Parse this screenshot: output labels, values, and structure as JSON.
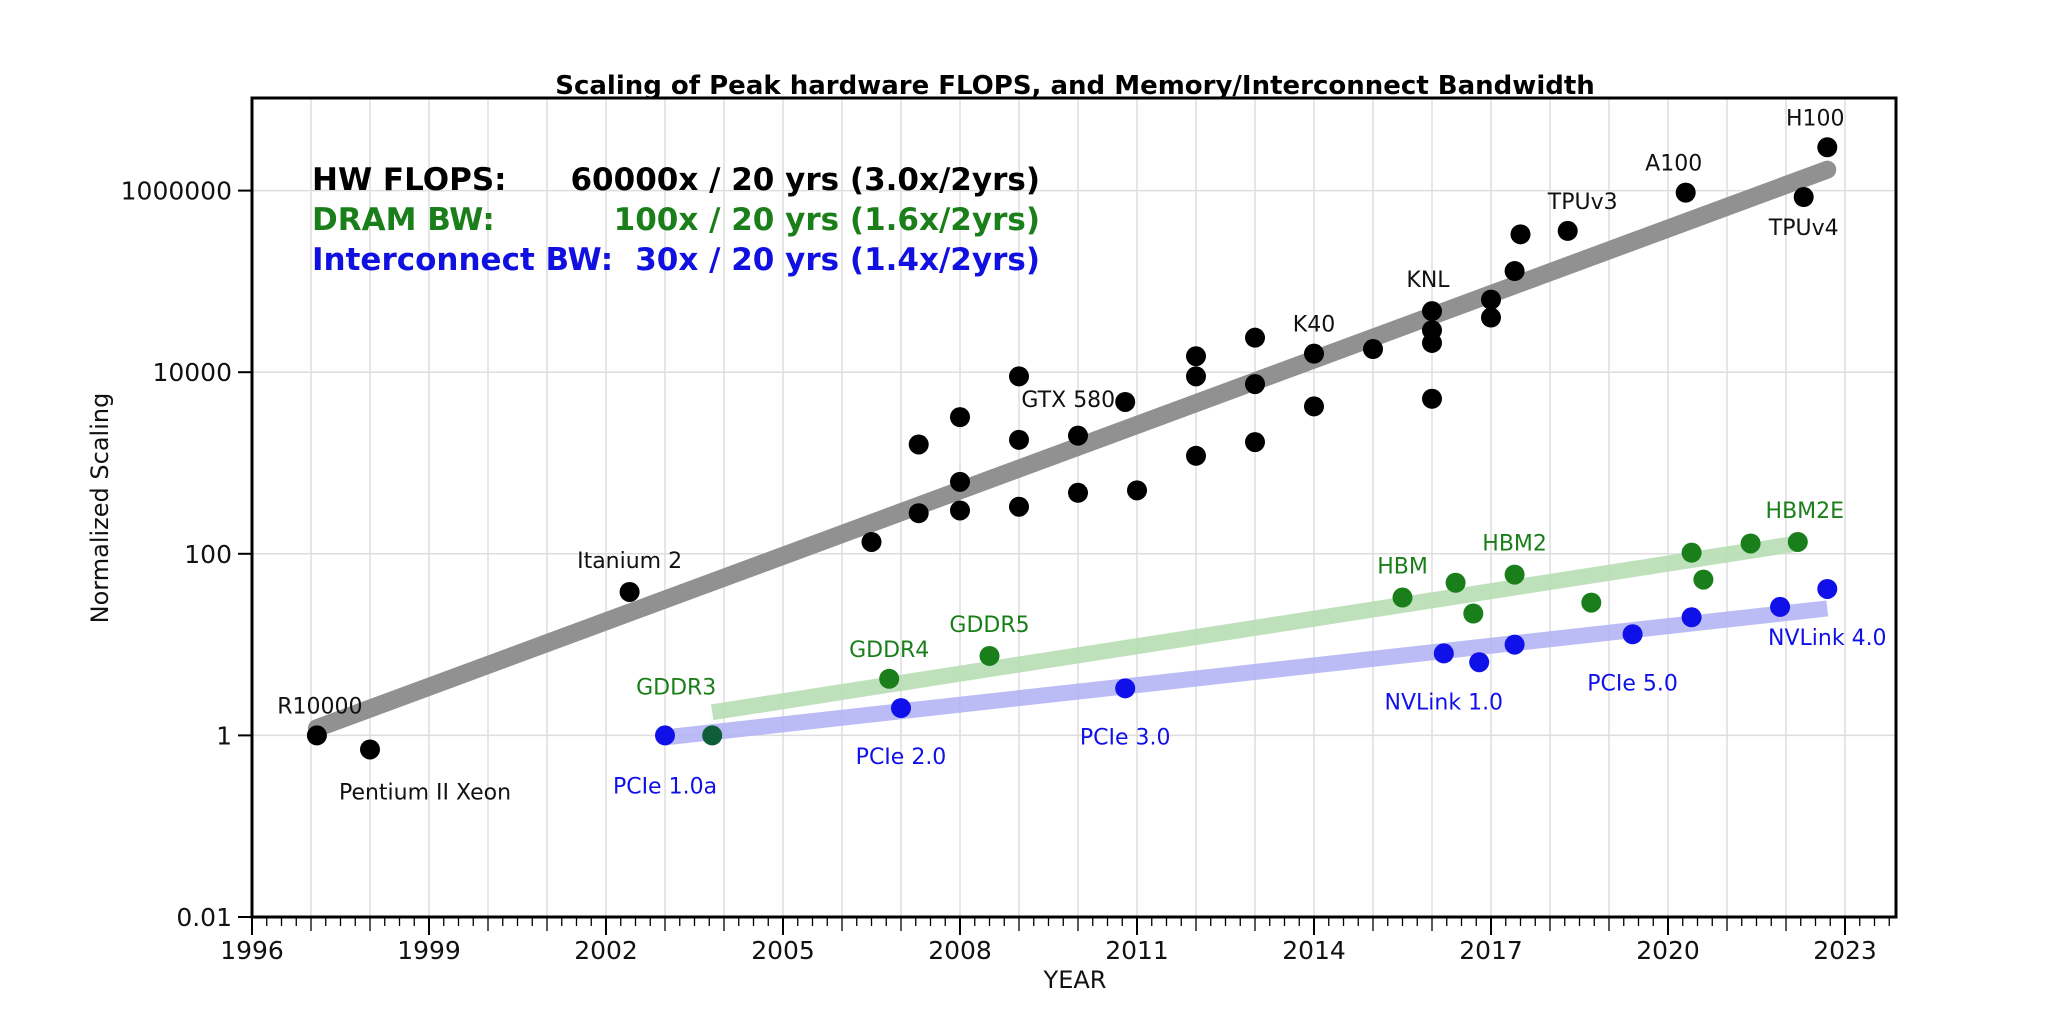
{
  "chart_data": {
    "type": "scatter",
    "title": "Scaling of Peak hardware FLOPS, and Memory/Interconnect Bandwidth",
    "xlabel": "YEAR",
    "ylabel": "Normalized Scaling",
    "xlim": [
      1996,
      2024
    ],
    "ylim": [
      0.01,
      10000000
    ],
    "yscale": "log",
    "grid": true,
    "x_ticks": [
      1996,
      1999,
      2002,
      2005,
      2008,
      2011,
      2014,
      2017,
      2020,
      2023
    ],
    "y_ticks": [
      {
        "value": 0.01,
        "label": "0.01"
      },
      {
        "value": 1,
        "label": "1"
      },
      {
        "value": 100,
        "label": "100"
      },
      {
        "value": 10000,
        "label": "10000"
      },
      {
        "value": 1000000,
        "label": "1000000"
      }
    ],
    "annotations": [
      {
        "label": "HW FLOPS:",
        "value": "60000x / 20 yrs (3.0x/2yrs)",
        "color": "#000000"
      },
      {
        "label": "DRAM BW:",
        "value": "100x / 20 yrs (1.6x/2yrs)",
        "color": "#1a7f1a"
      },
      {
        "label": "Interconnect BW:",
        "value": "30x / 20 yrs (1.4x/2yrs)",
        "color": "#1010e0"
      }
    ],
    "series": [
      {
        "name": "HW FLOPS",
        "color": "#000000",
        "trend": {
          "color": "#8c8c8c",
          "from": [
            1997.1,
            1.2
          ],
          "to": [
            2022.7,
            1700000
          ]
        },
        "points": [
          {
            "x": 1997.1,
            "y": 1,
            "label": "R10000"
          },
          {
            "x": 1998.0,
            "y": 0.7,
            "label": "Pentium II Xeon"
          },
          {
            "x": 2002.4,
            "y": 38,
            "label": "Itanium 2"
          },
          {
            "x": 2006.5,
            "y": 135
          },
          {
            "x": 2007.3,
            "y": 280
          },
          {
            "x": 2007.3,
            "y": 1600
          },
          {
            "x": 2008.0,
            "y": 300
          },
          {
            "x": 2008.0,
            "y": 620
          },
          {
            "x": 2008.0,
            "y": 3200
          },
          {
            "x": 2009.0,
            "y": 330
          },
          {
            "x": 2009.0,
            "y": 1800
          },
          {
            "x": 2009.0,
            "y": 9000
          },
          {
            "x": 2010.0,
            "y": 470
          },
          {
            "x": 2010.0,
            "y": 2000
          },
          {
            "x": 2010.8,
            "y": 4700,
            "label": "GTX 580"
          },
          {
            "x": 2011.0,
            "y": 500
          },
          {
            "x": 2012.0,
            "y": 1200
          },
          {
            "x": 2012.0,
            "y": 9000
          },
          {
            "x": 2012.0,
            "y": 15000
          },
          {
            "x": 2013.0,
            "y": 1700
          },
          {
            "x": 2013.0,
            "y": 7400
          },
          {
            "x": 2013.0,
            "y": 24000
          },
          {
            "x": 2014.0,
            "y": 4200
          },
          {
            "x": 2014.0,
            "y": 16000,
            "label": "K40"
          },
          {
            "x": 2015.0,
            "y": 18000
          },
          {
            "x": 2016.0,
            "y": 5100
          },
          {
            "x": 2016.0,
            "y": 21000
          },
          {
            "x": 2016.0,
            "y": 29000
          },
          {
            "x": 2016.0,
            "y": 47000,
            "label": "KNL"
          },
          {
            "x": 2017.0,
            "y": 40000
          },
          {
            "x": 2017.0,
            "y": 63000
          },
          {
            "x": 2017.4,
            "y": 130000
          },
          {
            "x": 2017.5,
            "y": 330000
          },
          {
            "x": 2018.3,
            "y": 360000,
            "label": "TPUv3"
          },
          {
            "x": 2020.3,
            "y": 950000,
            "label": "A100"
          },
          {
            "x": 2022.3,
            "y": 850000,
            "label": "TPUv4"
          },
          {
            "x": 2022.7,
            "y": 3000000,
            "label": "H100"
          }
        ]
      },
      {
        "name": "DRAM BW",
        "color": "#1a7f1a",
        "trend": {
          "color": "#b8deb4",
          "from": [
            2003.8,
            1.8
          ],
          "to": [
            2022.2,
            130
          ]
        },
        "points": [
          {
            "x": 2003.8,
            "y": 1,
            "label": "GDDR3"
          },
          {
            "x": 2006.8,
            "y": 4.2,
            "label": "GDDR4"
          },
          {
            "x": 2008.5,
            "y": 7.5,
            "label": "GDDR5"
          },
          {
            "x": 2015.5,
            "y": 33,
            "label": "HBM"
          },
          {
            "x": 2016.4,
            "y": 48
          },
          {
            "x": 2016.7,
            "y": 22
          },
          {
            "x": 2017.4,
            "y": 59,
            "label": "HBM2"
          },
          {
            "x": 2018.7,
            "y": 29
          },
          {
            "x": 2020.4,
            "y": 103
          },
          {
            "x": 2020.6,
            "y": 52
          },
          {
            "x": 2021.4,
            "y": 130
          },
          {
            "x": 2022.2,
            "y": 135,
            "label": "HBM2E"
          }
        ]
      },
      {
        "name": "Interconnect BW",
        "color": "#1010e8",
        "trend": {
          "color": "#b4b4f4",
          "from": [
            2003.0,
            0.95
          ],
          "to": [
            2022.7,
            25
          ]
        },
        "points": [
          {
            "x": 2003.0,
            "y": 1,
            "label": "PCIe 1.0a"
          },
          {
            "x": 2007.0,
            "y": 2,
            "label": "PCIe 2.0"
          },
          {
            "x": 2010.8,
            "y": 3.3,
            "label": "PCIe 3.0"
          },
          {
            "x": 2016.2,
            "y": 8,
            "label": "NVLink 1.0"
          },
          {
            "x": 2016.8,
            "y": 6.4
          },
          {
            "x": 2017.4,
            "y": 10
          },
          {
            "x": 2019.4,
            "y": 13,
            "label": "PCIe 5.0"
          },
          {
            "x": 2020.4,
            "y": 20
          },
          {
            "x": 2021.9,
            "y": 26
          },
          {
            "x": 2022.7,
            "y": 41,
            "label": "NVLink 4.0"
          }
        ]
      }
    ]
  }
}
